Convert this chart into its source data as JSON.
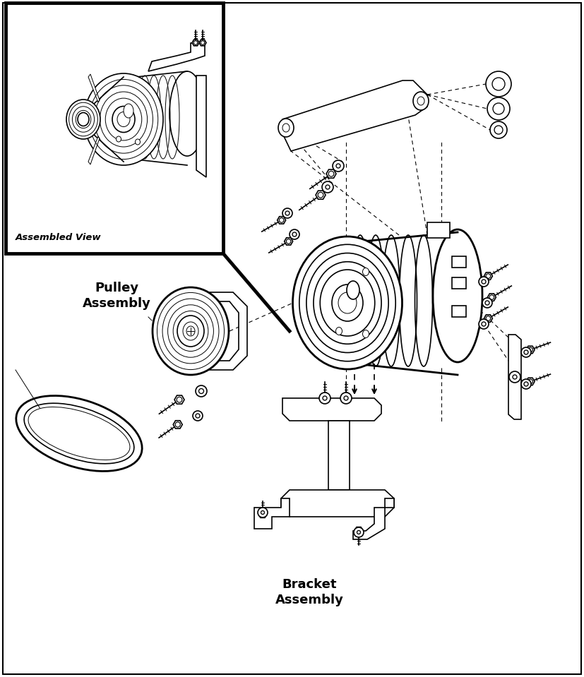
{
  "bg_color": "#ffffff",
  "lc": "#000000",
  "figsize": [
    8.27,
    9.59
  ],
  "dpi": 100,
  "labels": {
    "assembled_view": "Assembled View",
    "pulley_assembly": "Pulley\nAssembly",
    "bracket_assembly": "Bracket\nAssembly"
  }
}
